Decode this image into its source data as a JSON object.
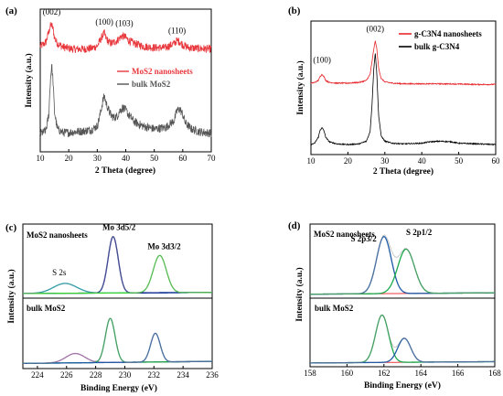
{
  "chart_data": [
    {
      "panel_label": "(a)",
      "type": "line",
      "xlabel": "2 Theta (degree)",
      "ylabel": "Intensity (a.u.)",
      "xlim": [
        10,
        70
      ],
      "xticks": [
        10,
        20,
        30,
        40,
        50,
        60,
        70
      ],
      "ylim": [
        0,
        10
      ],
      "legend": {
        "position": "middle-right",
        "entries": [
          {
            "label": "MoS2 nanosheets",
            "color": "#e8383d"
          },
          {
            "label": "bulk MoS2",
            "color": "#555555"
          }
        ]
      },
      "annotations": [
        {
          "text": "(002)",
          "x": 14,
          "y": 9.6
        },
        {
          "text": "(100)",
          "x": 32.5,
          "y": 8.9
        },
        {
          "text": "(103)",
          "x": 39.5,
          "y": 8.8
        },
        {
          "text": "(110)",
          "x": 58,
          "y": 8.3
        }
      ],
      "series": [
        {
          "name": "MoS2 nanosheets",
          "color": "#e8383d",
          "noise": 0.28,
          "x": [
            10,
            11,
            12,
            13,
            13.5,
            14,
            14.5,
            15,
            16,
            18,
            20,
            22,
            25,
            28,
            30,
            31,
            32,
            32.5,
            33,
            34,
            35,
            37,
            38.5,
            39.5,
            41,
            43,
            46,
            50,
            54,
            57,
            58,
            59,
            60,
            62,
            65,
            70
          ],
          "y": [
            7.4,
            7.5,
            7.7,
            8.4,
            8.8,
            8.9,
            8.6,
            8.0,
            7.6,
            7.35,
            7.25,
            7.2,
            7.2,
            7.25,
            7.4,
            7.8,
            8.2,
            8.3,
            8.0,
            7.7,
            7.6,
            7.8,
            8.1,
            8.1,
            7.8,
            7.6,
            7.4,
            7.3,
            7.3,
            7.6,
            7.8,
            7.7,
            7.5,
            7.3,
            7.25,
            7.2
          ]
        },
        {
          "name": "bulk MoS2",
          "color": "#555555",
          "noise": 0.3,
          "x": [
            10,
            11,
            12,
            13,
            13.5,
            14,
            14.5,
            15,
            16,
            18,
            20,
            22,
            25,
            28,
            30,
            31,
            32,
            32.5,
            33,
            34,
            35,
            36,
            37,
            38,
            39,
            40,
            41,
            43,
            46,
            50,
            54,
            57,
            58,
            59,
            60,
            61,
            63,
            66,
            70
          ],
          "y": [
            1.3,
            1.35,
            1.5,
            2.6,
            4.8,
            6.1,
            4.9,
            2.8,
            1.6,
            1.35,
            1.35,
            1.4,
            1.45,
            1.55,
            1.8,
            2.6,
            3.6,
            3.9,
            3.5,
            2.9,
            2.5,
            2.4,
            2.5,
            2.9,
            3.1,
            2.9,
            2.6,
            2.1,
            1.8,
            1.6,
            1.7,
            2.2,
            2.9,
            3.0,
            2.6,
            2.0,
            1.6,
            1.4,
            1.3
          ]
        }
      ]
    },
    {
      "panel_label": "(b)",
      "type": "line",
      "xlabel": "2 Theta (degree)",
      "ylabel": "Intensity (a.u.)",
      "xlim": [
        10,
        60
      ],
      "xticks": [
        10,
        20,
        30,
        40,
        50,
        60
      ],
      "ylim": [
        0,
        10
      ],
      "legend": {
        "position": "top-right",
        "entries": [
          {
            "label": "g-C3N4 nanosheets",
            "color": "#e8262b"
          },
          {
            "label": "bulk g-C3N4",
            "color": "#000000"
          }
        ]
      },
      "annotations": [
        {
          "text": "(100)",
          "x": 13,
          "y": 6.9
        },
        {
          "text": "(002)",
          "x": 27.4,
          "y": 9.2
        }
      ],
      "series": [
        {
          "name": "g-C3N4 nanosheets",
          "color": "#e8262b",
          "noise": 0.04,
          "x": [
            10,
            11,
            12,
            12.5,
            13,
            13.5,
            14,
            15,
            17,
            20,
            23,
            25,
            26,
            26.5,
            27,
            27.4,
            27.8,
            28.3,
            29,
            30,
            32,
            35,
            40,
            45,
            50,
            55,
            60
          ],
          "y": [
            5.35,
            5.4,
            5.55,
            5.85,
            6.0,
            5.85,
            5.55,
            5.4,
            5.35,
            5.35,
            5.4,
            5.55,
            6.0,
            6.9,
            7.9,
            8.5,
            8.0,
            6.5,
            5.7,
            5.45,
            5.35,
            5.3,
            5.3,
            5.3,
            5.28,
            5.25,
            5.25
          ]
        },
        {
          "name": "bulk g-C3N4",
          "color": "#000000",
          "noise": 0.04,
          "x": [
            10,
            11,
            12,
            12.5,
            13,
            13.5,
            14,
            15,
            17,
            20,
            23,
            25,
            26,
            26.5,
            27,
            27.4,
            27.8,
            28.3,
            29,
            30,
            32,
            35,
            40,
            42,
            45,
            48,
            50,
            55,
            60
          ],
          "y": [
            0.75,
            0.85,
            1.3,
            1.85,
            2.0,
            1.8,
            1.3,
            0.95,
            0.8,
            0.75,
            0.8,
            1.0,
            1.7,
            3.6,
            6.4,
            7.6,
            6.2,
            3.0,
            1.4,
            1.0,
            0.85,
            0.8,
            0.85,
            0.95,
            1.0,
            0.95,
            0.85,
            0.8,
            0.75
          ]
        }
      ]
    },
    {
      "panel_label": "(c)",
      "type": "line",
      "xlabel": "Binding Energy (eV)",
      "ylabel": "Intensity (a.u.)",
      "xlim": [
        223,
        236
      ],
      "xticks": [
        224,
        226,
        228,
        230,
        232,
        234,
        236
      ],
      "subplots": [
        {
          "title": "MoS2 nanosheets",
          "ylim": [
            0,
            10
          ],
          "annotations": [
            {
              "text": "S 2s",
              "x": 225.5,
              "y": 3.0
            },
            {
              "text": "Mo 3d5/2",
              "x": 229.6,
              "y": 9.4
            },
            {
              "text": "Mo 3d3/2",
              "x": 232.7,
              "y": 6.7
            }
          ],
          "peaks": [
            {
              "color": "#00a6b8",
              "center": 225.9,
              "height": 1.4,
              "width": 0.8
            },
            {
              "color": "#0b1a8c",
              "center": 229.2,
              "height": 8.0,
              "width": 0.35
            },
            {
              "color": "#39d633",
              "center": 232.4,
              "height": 5.3,
              "width": 0.45
            }
          ],
          "background": {
            "color": "#e27bd1",
            "start": 0.4,
            "end": 0.55
          }
        },
        {
          "title": "bulk MoS2",
          "ylim": [
            0,
            10
          ],
          "peaks": [
            {
              "color": "#b067b8",
              "center": 226.6,
              "height": 1.4,
              "width": 0.65
            },
            {
              "color": "#1aa84a",
              "center": 229.0,
              "height": 6.6,
              "width": 0.33
            },
            {
              "color": "#1f5aa6",
              "center": 232.1,
              "height": 4.3,
              "width": 0.33
            }
          ],
          "background": {
            "color": "#b067b8",
            "start": 0.5,
            "end": 0.8
          }
        }
      ]
    },
    {
      "panel_label": "(d)",
      "type": "line",
      "xlabel": "Binding Energy (eV)",
      "ylabel": "Intensity (a.u.)",
      "xlim": [
        158,
        168
      ],
      "xticks": [
        158,
        160,
        162,
        164,
        166,
        168
      ],
      "subplots": [
        {
          "title": "MoS2 nanosheets",
          "ylim": [
            0,
            10
          ],
          "annotations": [
            {
              "text": "S 2p3/2",
              "x": 160.9,
              "y": 7.8
            },
            {
              "text": "S 2p1/2",
              "x": 163.9,
              "y": 8.7
            }
          ],
          "peaks": [
            {
              "color": "#1f5aa6",
              "center": 162.0,
              "height": 8.1,
              "width": 0.4
            },
            {
              "color": "#1aa84a",
              "center": 163.2,
              "height": 6.3,
              "width": 0.45
            }
          ],
          "background": {
            "color": "#e8383d",
            "start": 0.3,
            "end": 0.5
          }
        },
        {
          "title": "bulk MoS2",
          "ylim": [
            0,
            10
          ],
          "peaks": [
            {
              "color": "#1aa84a",
              "center": 161.9,
              "height": 7.3,
              "width": 0.35
            },
            {
              "color": "#1f5aa6",
              "center": 163.1,
              "height": 3.7,
              "width": 0.35
            }
          ],
          "background": {
            "color": "#e8383d",
            "start": 0.3,
            "end": 0.5
          }
        }
      ]
    }
  ]
}
